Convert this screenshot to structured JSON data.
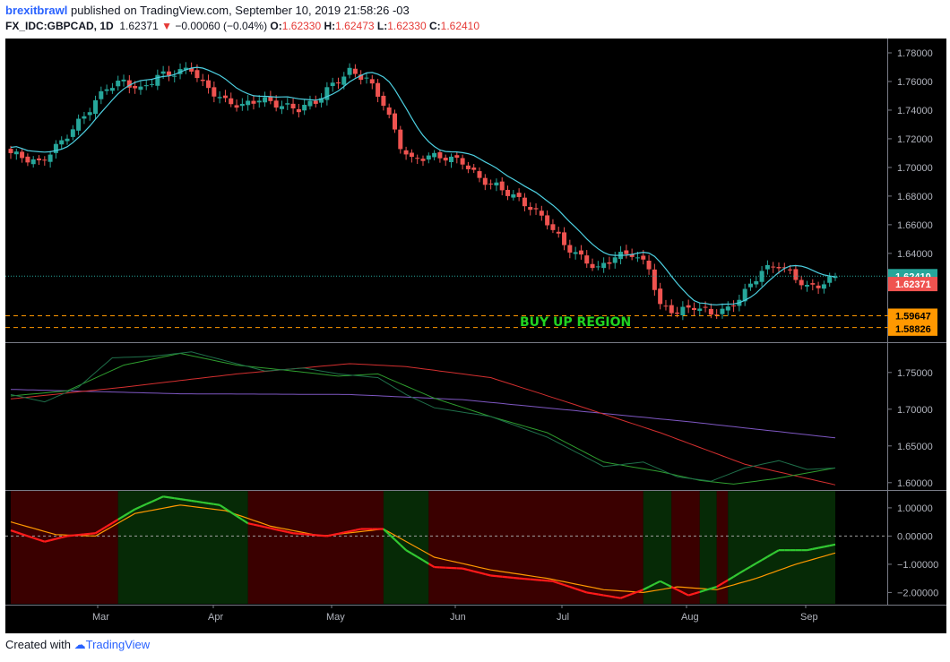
{
  "header": {
    "user": "brexitbrawl",
    "published_text": "published on TradingView.com, September 10, 2019 21:58:26 -03",
    "symbol": "FX_IDC:GBPCAD, 1D",
    "last": "1.62371",
    "change": "−0.00060 (−0.04%)",
    "open_label": "O:",
    "open": "1.62330",
    "high_label": "H:",
    "high": "1.62473",
    "low_label": "L:",
    "low": "1.62330",
    "close_label": "C:",
    "close": "1.62410"
  },
  "footer": {
    "created_with": "Created with",
    "brand": "TradingView"
  },
  "colors": {
    "background": "#000000",
    "up": "#26a69a",
    "down": "#ef5350",
    "ma": "#4dd0e1",
    "region_line": "#ff9800",
    "region_text": "#21d321",
    "price_line": "#26a69a",
    "ma_red": "#d32f2f",
    "ma_purple": "#7e57c2",
    "ma_green": "#2e9d2e",
    "ma_dkgreen": "#1f6f4a",
    "osc_red": "#ff1a1a",
    "osc_orange": "#ff9800",
    "bg_red": "#3a0000",
    "bg_green": "#062a06"
  },
  "chart_data": [
    {
      "type": "candlestick",
      "panel": "price",
      "xlabels": [
        "Mar",
        "Apr",
        "May",
        "Jun",
        "Jul",
        "Aug",
        "Sep"
      ],
      "ylim": [
        1.578,
        1.79
      ],
      "yticks": [
        "1.78000",
        "1.76000",
        "1.74000",
        "1.72000",
        "1.70000",
        "1.68000",
        "1.66000",
        "1.64000"
      ],
      "close_keypoints": [
        [
          0,
          1.71
        ],
        [
          5,
          1.703
        ],
        [
          9,
          1.718
        ],
        [
          13,
          1.736
        ],
        [
          17,
          1.756
        ],
        [
          20,
          1.76
        ],
        [
          23,
          1.754
        ],
        [
          26,
          1.764
        ],
        [
          29,
          1.766
        ],
        [
          32,
          1.769
        ],
        [
          34,
          1.758
        ],
        [
          38,
          1.746
        ],
        [
          41,
          1.743
        ],
        [
          44,
          1.748
        ],
        [
          48,
          1.743
        ],
        [
          51,
          1.741
        ],
        [
          54,
          1.746
        ],
        [
          57,
          1.758
        ],
        [
          60,
          1.767
        ],
        [
          63,
          1.762
        ],
        [
          66,
          1.745
        ],
        [
          69,
          1.715
        ],
        [
          71,
          1.705
        ],
        [
          74,
          1.708
        ],
        [
          77,
          1.707
        ],
        [
          80,
          1.704
        ],
        [
          83,
          1.692
        ],
        [
          86,
          1.687
        ],
        [
          89,
          1.68
        ],
        [
          92,
          1.672
        ],
        [
          95,
          1.662
        ],
        [
          98,
          1.646
        ],
        [
          101,
          1.637
        ],
        [
          104,
          1.629
        ],
        [
          107,
          1.638
        ],
        [
          110,
          1.64
        ],
        [
          113,
          1.63
        ],
        [
          115,
          1.603
        ],
        [
          118,
          1.599
        ],
        [
          121,
          1.603
        ],
        [
          124,
          1.598
        ],
        [
          127,
          1.601
        ],
        [
          130,
          1.613
        ],
        [
          133,
          1.628
        ],
        [
          136,
          1.632
        ],
        [
          139,
          1.623
        ],
        [
          141,
          1.616
        ],
        [
          144,
          1.619
        ],
        [
          146,
          1.624
        ]
      ],
      "last_price_label": "1.62410",
      "current_price_label": "1.62371",
      "region": {
        "label": "BUY UP REGION",
        "upper": 1.59647,
        "lower": 1.58826,
        "upper_label": "1.59647",
        "lower_label": "1.58826"
      }
    },
    {
      "type": "line",
      "panel": "moving-averages",
      "ylim": [
        1.59,
        1.79
      ],
      "yticks": [
        "1.75000",
        "1.70000",
        "1.65000",
        "1.60000"
      ],
      "series": [
        {
          "color_key": "ma_purple",
          "points": [
            [
              0,
              1.727
            ],
            [
              30,
              1.721
            ],
            [
              60,
              1.72
            ],
            [
              80,
              1.713
            ],
            [
              100,
              1.698
            ],
            [
              120,
              1.683
            ],
            [
              146,
              1.661
            ]
          ]
        },
        {
          "color_key": "ma_red",
          "points": [
            [
              0,
              1.714
            ],
            [
              20,
              1.73
            ],
            [
              40,
              1.748
            ],
            [
              60,
              1.762
            ],
            [
              70,
              1.758
            ],
            [
              85,
              1.743
            ],
            [
              100,
              1.706
            ],
            [
              115,
              1.668
            ],
            [
              130,
              1.625
            ],
            [
              146,
              1.597
            ]
          ]
        },
        {
          "color_key": "ma_green",
          "points": [
            [
              0,
              1.718
            ],
            [
              10,
              1.725
            ],
            [
              20,
              1.76
            ],
            [
              30,
              1.776
            ],
            [
              40,
              1.76
            ],
            [
              50,
              1.752
            ],
            [
              58,
              1.745
            ],
            [
              65,
              1.748
            ],
            [
              75,
              1.715
            ],
            [
              85,
              1.69
            ],
            [
              95,
              1.668
            ],
            [
              105,
              1.628
            ],
            [
              115,
              1.615
            ],
            [
              122,
              1.603
            ],
            [
              128,
              1.598
            ],
            [
              135,
              1.605
            ],
            [
              146,
              1.62
            ]
          ]
        },
        {
          "color_key": "ma_dkgreen",
          "points": [
            [
              0,
              1.72
            ],
            [
              6,
              1.71
            ],
            [
              12,
              1.73
            ],
            [
              18,
              1.77
            ],
            [
              25,
              1.772
            ],
            [
              32,
              1.778
            ],
            [
              38,
              1.766
            ],
            [
              45,
              1.752
            ],
            [
              52,
              1.756
            ],
            [
              58,
              1.748
            ],
            [
              65,
              1.743
            ],
            [
              70,
              1.72
            ],
            [
              75,
              1.702
            ],
            [
              85,
              1.69
            ],
            [
              95,
              1.662
            ],
            [
              105,
              1.622
            ],
            [
              112,
              1.628
            ],
            [
              118,
              1.608
            ],
            [
              124,
              1.602
            ],
            [
              130,
              1.62
            ],
            [
              136,
              1.63
            ],
            [
              141,
              1.618
            ],
            [
              146,
              1.62
            ]
          ]
        }
      ]
    },
    {
      "type": "line",
      "panel": "oscillator",
      "ylim": [
        -2.4,
        1.6
      ],
      "yticks": [
        "1.00000",
        "0.00000",
        "−1.00000",
        "−2.00000"
      ],
      "zones": [
        {
          "from": 0,
          "to": 19,
          "state": "red"
        },
        {
          "from": 19,
          "to": 42,
          "state": "green"
        },
        {
          "from": 42,
          "to": 66,
          "state": "red"
        },
        {
          "from": 66,
          "to": 74,
          "state": "green"
        },
        {
          "from": 74,
          "to": 112,
          "state": "red"
        },
        {
          "from": 112,
          "to": 117,
          "state": "green"
        },
        {
          "from": 117,
          "to": 122,
          "state": "red"
        },
        {
          "from": 122,
          "to": 125,
          "state": "green"
        },
        {
          "from": 125,
          "to": 127,
          "state": "red"
        },
        {
          "from": 127,
          "to": 146,
          "state": "green"
        }
      ],
      "series": [
        {
          "color_key": "osc_orange",
          "points": [
            [
              0,
              0.5
            ],
            [
              8,
              0.05
            ],
            [
              15,
              0.0
            ],
            [
              22,
              0.8
            ],
            [
              30,
              1.1
            ],
            [
              38,
              0.9
            ],
            [
              46,
              0.35
            ],
            [
              55,
              0.0
            ],
            [
              66,
              0.25
            ],
            [
              75,
              -0.75
            ],
            [
              85,
              -1.2
            ],
            [
              95,
              -1.5
            ],
            [
              105,
              -1.9
            ],
            [
              112,
              -2.0
            ],
            [
              118,
              -1.8
            ],
            [
              125,
              -1.9
            ],
            [
              132,
              -1.5
            ],
            [
              139,
              -1.0
            ],
            [
              146,
              -0.6
            ]
          ]
        },
        {
          "color_key": "osc_red",
          "points": [
            [
              0,
              0.2
            ],
            [
              6,
              -0.2
            ],
            [
              10,
              0.0
            ],
            [
              15,
              0.1
            ],
            [
              22,
              0.95
            ],
            [
              27,
              1.4
            ],
            [
              32,
              1.25
            ],
            [
              37,
              1.1
            ],
            [
              42,
              0.45
            ],
            [
              50,
              0.1
            ],
            [
              56,
              0.0
            ],
            [
              62,
              0.25
            ],
            [
              66,
              0.25
            ],
            [
              70,
              -0.5
            ],
            [
              75,
              -1.1
            ],
            [
              80,
              -1.15
            ],
            [
              85,
              -1.4
            ],
            [
              90,
              -1.5
            ],
            [
              96,
              -1.6
            ],
            [
              102,
              -2.0
            ],
            [
              108,
              -2.2
            ],
            [
              112,
              -1.9
            ],
            [
              115,
              -1.6
            ],
            [
              117,
              -1.8
            ],
            [
              120,
              -2.1
            ],
            [
              125,
              -1.8
            ],
            [
              130,
              -1.2
            ],
            [
              136,
              -0.5
            ],
            [
              141,
              -0.5
            ],
            [
              146,
              -0.3
            ]
          ]
        }
      ]
    }
  ]
}
